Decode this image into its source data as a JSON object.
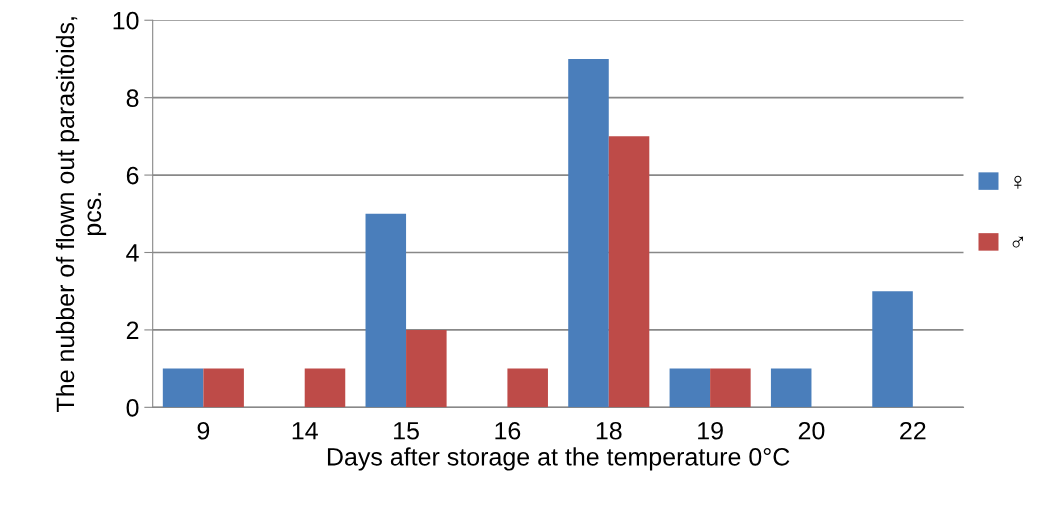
{
  "chart_data": {
    "type": "bar",
    "xlabel": "Days after storage at the temperature 0°C",
    "ylabel": "The nubber of flown out parasitoids, pcs.",
    "categories": [
      "9",
      "14",
      "15",
      "16",
      "18",
      "19",
      "20",
      "22"
    ],
    "series": [
      {
        "name": "♀",
        "color": "#4a7ebb",
        "values": [
          1,
          0,
          5,
          0,
          9,
          1,
          1,
          3
        ]
      },
      {
        "name": "♂",
        "color": "#be4b48",
        "values": [
          1,
          1,
          2,
          1,
          7,
          1,
          0,
          0
        ]
      }
    ],
    "ylim": [
      0,
      10
    ],
    "yticks": [
      0,
      2,
      4,
      6,
      8,
      10
    ],
    "grid": "y",
    "legend": "right"
  }
}
